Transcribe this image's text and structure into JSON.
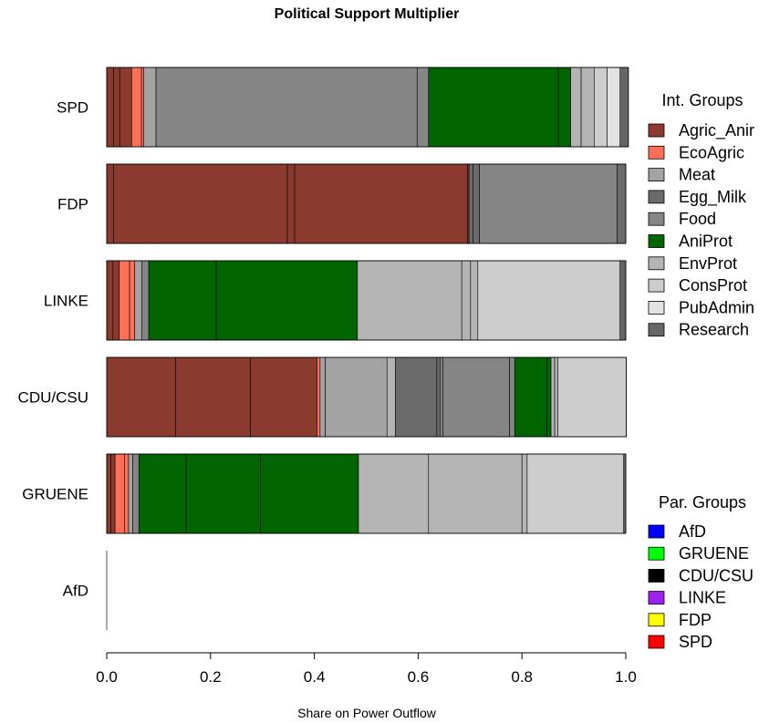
{
  "chart_data": {
    "type": "bar",
    "orientation": "horizontal-stacked",
    "title": "Political Support Multiplier",
    "xlabel": "Share on Power Outflow",
    "ylabel": "",
    "xlim": [
      0,
      1
    ],
    "xticks": [
      "0.0",
      "0.2",
      "0.4",
      "0.6",
      "0.8",
      "1.0"
    ],
    "grid": false,
    "categories": [
      "SPD",
      "FDP",
      "LINKE",
      "CDU/CSU",
      "GRUENE",
      "AfD"
    ],
    "bars": [
      {
        "category": "SPD",
        "segments": [
          {
            "group": "Agric_Anir",
            "value": 0.013
          },
          {
            "group": "Agric_Anir",
            "value": 0.012
          },
          {
            "group": "Agric_Anir",
            "value": 0.023
          },
          {
            "group": "EcoAgric",
            "value": 0.019
          },
          {
            "group": "EcoAgric",
            "value": 0.004
          },
          {
            "group": "Meat",
            "value": 0.024
          },
          {
            "group": "Food",
            "value": 0.503
          },
          {
            "group": "Food",
            "value": 0.022
          },
          {
            "group": "AniProt",
            "value": 0.25
          },
          {
            "group": "AniProt",
            "value": 0.024
          },
          {
            "group": "EnvProt",
            "value": 0.02
          },
          {
            "group": "EnvProt",
            "value": 0.025
          },
          {
            "group": "ConsProt",
            "value": 0.025
          },
          {
            "group": "PubAdmin",
            "value": 0.025
          },
          {
            "group": "Research",
            "value": 0.016
          }
        ]
      },
      {
        "category": "FDP",
        "segments": [
          {
            "group": "Agric_Anir",
            "value": 0.013
          },
          {
            "group": "Agric_Anir",
            "value": 0.335
          },
          {
            "group": "Agric_Anir",
            "value": 0.014
          },
          {
            "group": "Agric_Anir",
            "value": 0.333
          },
          {
            "group": "Agric_Anir",
            "value": 0.003
          },
          {
            "group": "Egg_Milk",
            "value": 0.008
          },
          {
            "group": "Egg_Milk",
            "value": 0.012
          },
          {
            "group": "Food",
            "value": 0.265
          },
          {
            "group": "Egg_Milk",
            "value": 0.017
          }
        ]
      },
      {
        "category": "LINKE",
        "segments": [
          {
            "group": "Agric_Anir",
            "value": 0.012
          },
          {
            "group": "Agric_Anir",
            "value": 0.012
          },
          {
            "group": "EcoAgric",
            "value": 0.02
          },
          {
            "group": "EcoAgric",
            "value": 0.01
          },
          {
            "group": "Meat",
            "value": 0.014
          },
          {
            "group": "Food",
            "value": 0.013
          },
          {
            "group": "AniProt",
            "value": 0.13
          },
          {
            "group": "AniProt",
            "value": 0.272
          },
          {
            "group": "EnvProt",
            "value": 0.201
          },
          {
            "group": "EnvProt",
            "value": 0.017
          },
          {
            "group": "EnvProt",
            "value": 0.014
          },
          {
            "group": "ConsProt",
            "value": 0.274
          },
          {
            "group": "Research",
            "value": 0.011
          }
        ]
      },
      {
        "category": "CDU/CSU",
        "segments": [
          {
            "group": "Agric_Anir",
            "value": 0.133
          },
          {
            "group": "Agric_Anir",
            "value": 0.144
          },
          {
            "group": "Agric_Anir",
            "value": 0.128
          },
          {
            "group": "EcoAgric",
            "value": 0.006
          },
          {
            "group": "Meat",
            "value": 0.01
          },
          {
            "group": "Meat",
            "value": 0.119
          },
          {
            "group": "EnvProt",
            "value": 0.016
          },
          {
            "group": "Egg_Milk",
            "value": 0.08
          },
          {
            "group": "Egg_Milk",
            "value": 0.006
          },
          {
            "group": "Food",
            "value": 0.006
          },
          {
            "group": "Food",
            "value": 0.128
          },
          {
            "group": "Food",
            "value": 0.01
          },
          {
            "group": "AniProt",
            "value": 0.062
          },
          {
            "group": "AniProt",
            "value": 0.008
          },
          {
            "group": "EnvProt",
            "value": 0.007
          },
          {
            "group": "EnvProt",
            "value": 0.006
          },
          {
            "group": "ConsProt",
            "value": 0.132
          }
        ]
      },
      {
        "category": "GRUENE",
        "segments": [
          {
            "group": "Agric_Anir",
            "value": 0.008
          },
          {
            "group": "Agric_Anir",
            "value": 0.008
          },
          {
            "group": "EcoAgric",
            "value": 0.018
          },
          {
            "group": "EcoAgric",
            "value": 0.008
          },
          {
            "group": "Meat",
            "value": 0.008
          },
          {
            "group": "Food",
            "value": 0.012
          },
          {
            "group": "AniProt",
            "value": 0.091
          },
          {
            "group": "AniProt",
            "value": 0.143
          },
          {
            "group": "AniProt",
            "value": 0.189
          },
          {
            "group": "EnvProt",
            "value": 0.135
          },
          {
            "group": "EnvProt",
            "value": 0.18
          },
          {
            "group": "EnvProt",
            "value": 0.01
          },
          {
            "group": "ConsProt",
            "value": 0.186
          },
          {
            "group": "Research",
            "value": 0.004
          }
        ]
      },
      {
        "category": "AfD",
        "segments": []
      }
    ],
    "legends": [
      {
        "title": "Int. Groups",
        "position": "right",
        "entries": [
          {
            "label": "Agric_Anir",
            "color": "#8B3A2F"
          },
          {
            "label": "EcoAgric",
            "color": "#FF6F55"
          },
          {
            "label": "Meat",
            "color": "#A3A3A3"
          },
          {
            "label": "Egg_Milk",
            "color": "#6B6B6B"
          },
          {
            "label": "Food",
            "color": "#858585"
          },
          {
            "label": "AniProt",
            "color": "#006400"
          },
          {
            "label": "EnvProt",
            "color": "#B4B4B4"
          },
          {
            "label": "ConsProt",
            "color": "#CDCDCD"
          },
          {
            "label": "PubAdmin",
            "color": "#E2E2E2"
          },
          {
            "label": "Research",
            "color": "#666666"
          }
        ]
      },
      {
        "title": "Par. Groups",
        "position": "bottom-right",
        "entries": [
          {
            "label": "AfD",
            "color": "#0000FF"
          },
          {
            "label": "GRUENE",
            "color": "#00FF00"
          },
          {
            "label": "CDU/CSU",
            "color": "#000000"
          },
          {
            "label": "LINKE",
            "color": "#A020F0"
          },
          {
            "label": "FDP",
            "color": "#FFFF00"
          },
          {
            "label": "SPD",
            "color": "#FF0000"
          }
        ]
      }
    ]
  }
}
